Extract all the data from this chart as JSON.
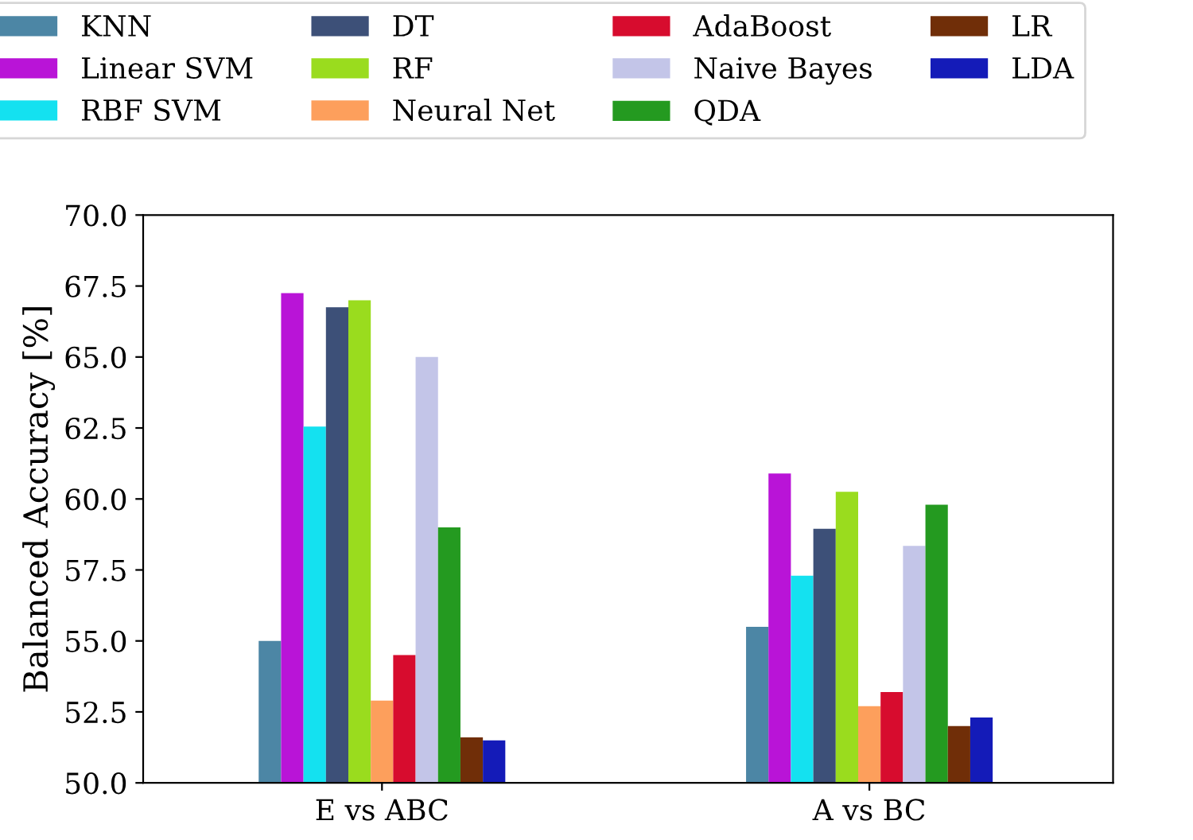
{
  "chart_data": {
    "type": "bar",
    "ylabel": "Balanced Accuracy [%]",
    "categories": [
      "E vs ABC",
      "A vs BC"
    ],
    "ylim": [
      50.0,
      70.0
    ],
    "yticks": [
      {
        "value": 50,
        "label": "50.0"
      },
      {
        "value": 52.5,
        "label": "52.5"
      },
      {
        "value": 55,
        "label": "55.0"
      },
      {
        "value": 57.5,
        "label": "57.5"
      },
      {
        "value": 60,
        "label": "60.0"
      },
      {
        "value": 62.5,
        "label": "62.5"
      },
      {
        "value": 65,
        "label": "65.0"
      },
      {
        "value": 67.5,
        "label": "67.5"
      },
      {
        "value": 70,
        "label": "70.0"
      }
    ],
    "grid": false,
    "legend": "top",
    "series": [
      {
        "name": "KNN",
        "color": "#4c86a5",
        "values": [
          55.0,
          55.5
        ]
      },
      {
        "name": "Linear SVM",
        "color": "#b914d7",
        "values": [
          67.25,
          60.9
        ]
      },
      {
        "name": "RBF SVM",
        "color": "#14e1f0",
        "values": [
          62.55,
          57.3
        ]
      },
      {
        "name": "DT",
        "color": "#3d5078",
        "values": [
          66.75,
          58.95
        ]
      },
      {
        "name": "RF",
        "color": "#9adc1e",
        "values": [
          67.0,
          60.25
        ]
      },
      {
        "name": "Neural Net",
        "color": "#fd9f5c",
        "values": [
          52.9,
          52.7
        ]
      },
      {
        "name": "AdaBoost",
        "color": "#d70c2e",
        "values": [
          54.5,
          53.2
        ]
      },
      {
        "name": "Naive Bayes",
        "color": "#c3c5e8",
        "values": [
          65.0,
          58.35
        ]
      },
      {
        "name": "QDA",
        "color": "#249a20",
        "values": [
          59.0,
          59.8
        ]
      },
      {
        "name": "LR",
        "color": "#702e08",
        "values": [
          51.6,
          52.0
        ]
      },
      {
        "name": "LDA",
        "color": "#141bb8",
        "values": [
          51.5,
          52.3
        ]
      }
    ]
  }
}
